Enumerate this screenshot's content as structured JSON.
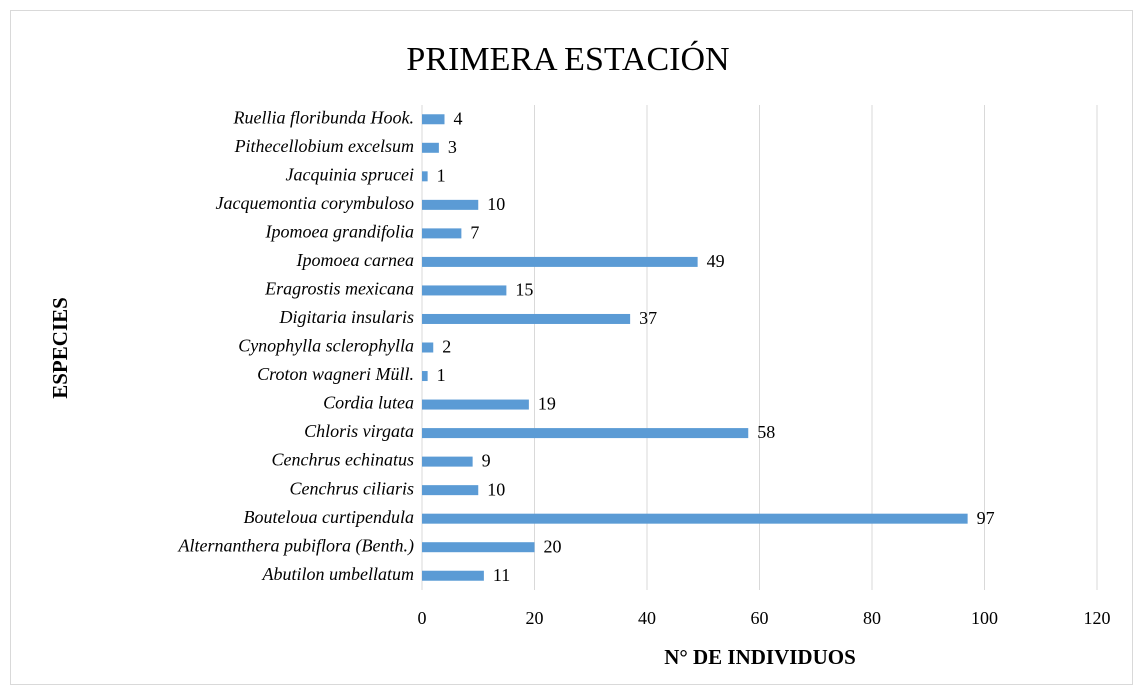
{
  "chart_data": {
    "type": "barh",
    "title": "PRIMERA ESTACIÓN",
    "xlabel": "N° DE INDIVIDUOS",
    "ylabel": "ESPECIES",
    "categories": [
      "Abutilon umbellatum",
      "Alternanthera pubiflora (Benth.)",
      "Bouteloua curtipendula",
      "Cenchrus ciliaris",
      "Cenchrus echinatus",
      "Chloris virgata",
      "Cordia lutea",
      "Croton wagneri Müll.",
      "Cynophylla sclerophylla",
      "Digitaria insularis",
      "Eragrostis mexicana",
      "Ipomoea carnea",
      "Ipomoea grandifolia",
      "Jacquemontia corymbuloso",
      "Jacquinia sprucei",
      "Pithecellobium excelsum",
      "Ruellia floribunda Hook."
    ],
    "values": [
      11,
      20,
      97,
      10,
      9,
      58,
      19,
      1,
      2,
      37,
      15,
      49,
      7,
      10,
      1,
      3,
      4
    ],
    "color": "#5b9bd5",
    "xlim": [
      0,
      120
    ],
    "xticks": [
      0,
      20,
      40,
      60,
      80,
      100,
      120
    ],
    "grid": true
  }
}
